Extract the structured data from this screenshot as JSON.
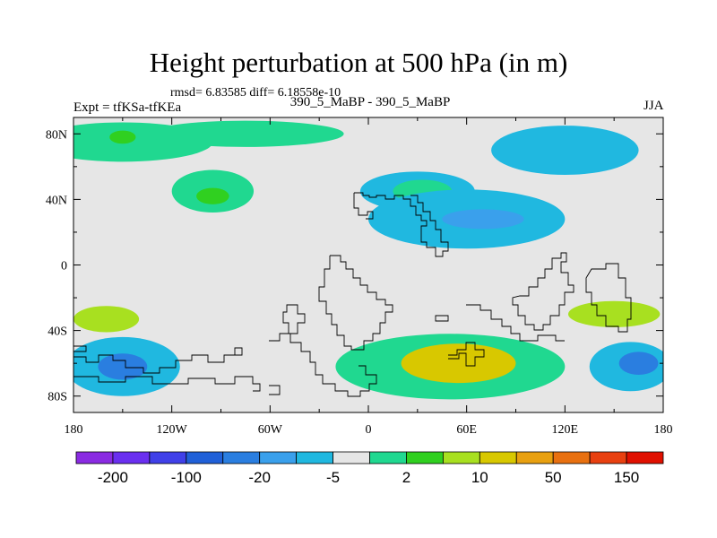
{
  "header": {
    "title": "Height perturbation at 500 hPa (in m)",
    "stats": "rmsd= 6.83585 diff= 6.18558e-10",
    "experiment": "Expt = tfKSa-tfKEa",
    "comparison": "390_5_MaBP - 390_5_MaBP",
    "season": "JJA"
  },
  "chart_data": {
    "type": "heatmap",
    "title": "Height perturbation at 500 hPa (in m)",
    "xlabel": "",
    "ylabel": "",
    "xlim": [
      -180,
      180
    ],
    "ylim": [
      -90,
      90
    ],
    "x_ticks": [
      {
        "value": -180,
        "label": "180"
      },
      {
        "value": -120,
        "label": "120W"
      },
      {
        "value": -60,
        "label": "60W"
      },
      {
        "value": 0,
        "label": "0"
      },
      {
        "value": 60,
        "label": "60E"
      },
      {
        "value": 120,
        "label": "120E"
      },
      {
        "value": 180,
        "label": "180"
      }
    ],
    "y_ticks": [
      {
        "value": 80,
        "label": "80N"
      },
      {
        "value": 40,
        "label": "40N"
      },
      {
        "value": 0,
        "label": "0"
      },
      {
        "value": -40,
        "label": "40S"
      },
      {
        "value": -80,
        "label": "80S"
      }
    ],
    "levels": [
      -200,
      -150,
      -100,
      -50,
      -20,
      -10,
      -5,
      -2,
      2,
      5,
      10,
      20,
      50,
      100,
      150,
      200
    ],
    "colorbar_labels": [
      {
        "level": -200,
        "label": "-200"
      },
      {
        "level": -100,
        "label": "-100"
      },
      {
        "level": -20,
        "label": "-20"
      },
      {
        "level": -5,
        "label": "-5"
      },
      {
        "level": 2,
        "label": "2"
      },
      {
        "level": 10,
        "label": "10"
      },
      {
        "level": 50,
        "label": "50"
      },
      {
        "level": 150,
        "label": "150"
      }
    ],
    "colors": [
      "#8a2be2",
      "#6a2ff0",
      "#4040e8",
      "#2060d8",
      "#2a7ee0",
      "#3aa0ec",
      "#20b8e0",
      "#e6e6e6",
      "#20d890",
      "#30d020",
      "#a8e020",
      "#d8c800",
      "#e8a010",
      "#e87010",
      "#e84010",
      "#e01000"
    ],
    "regions": [
      {
        "name": "north-atlantic",
        "level_index": 8,
        "lon": -150,
        "lat": 75,
        "dlon": 55,
        "dlat": 12
      },
      {
        "name": "north-atlantic-core",
        "level_index": 9,
        "lon": -150,
        "lat": 78,
        "dlon": 8,
        "dlat": 4
      },
      {
        "name": "north-europe",
        "level_index": 8,
        "lon": -75,
        "lat": 80,
        "dlon": 60,
        "dlat": 8
      },
      {
        "name": "siberia-high",
        "level_index": 6,
        "lon": 30,
        "lat": 45,
        "dlon": 35,
        "dlat": 12
      },
      {
        "name": "siberia-core",
        "level_index": 8,
        "lon": 33,
        "lat": 45,
        "dlon": 18,
        "dlat": 7
      },
      {
        "name": "pacific-north",
        "level_index": 8,
        "lon": -95,
        "lat": 45,
        "dlon": 25,
        "dlat": 13
      },
      {
        "name": "pacific-north-core",
        "level_index": 9,
        "lon": -95,
        "lat": 42,
        "dlon": 10,
        "dlat": 5
      },
      {
        "name": "asia-trough",
        "level_index": 6,
        "lon": 60,
        "lat": 28,
        "dlon": 60,
        "dlat": 18
      },
      {
        "name": "asia-trough-core",
        "level_index": 5,
        "lon": 70,
        "lat": 28,
        "dlon": 25,
        "dlat": 6
      },
      {
        "name": "eastasia-north",
        "level_index": 6,
        "lon": 120,
        "lat": 70,
        "dlon": 45,
        "dlat": 15
      },
      {
        "name": "southern-ocean-ring",
        "level_index": 8,
        "lon": 50,
        "lat": -62,
        "dlon": 70,
        "dlat": 20
      },
      {
        "name": "southern-core",
        "level_index": 11,
        "lon": 55,
        "lat": -60,
        "dlon": 35,
        "dlat": 12
      },
      {
        "name": "atlantic-south",
        "level_index": 6,
        "lon": -150,
        "lat": -62,
        "dlon": 35,
        "dlat": 18
      },
      {
        "name": "atlantic-south-core",
        "level_index": 4,
        "lon": -150,
        "lat": -62,
        "dlon": 15,
        "dlat": 8
      },
      {
        "name": "sw-pacific",
        "level_index": 10,
        "lon": -160,
        "lat": -33,
        "dlon": 20,
        "dlat": 8
      },
      {
        "name": "australia-trough",
        "level_index": 6,
        "lon": 160,
        "lat": -62,
        "dlon": 25,
        "dlat": 15
      },
      {
        "name": "australia-core",
        "level_index": 4,
        "lon": 165,
        "lat": -60,
        "dlon": 12,
        "dlat": 7
      },
      {
        "name": "indian-ridge",
        "level_index": 10,
        "lon": 150,
        "lat": -30,
        "dlon": 28,
        "dlat": 8
      }
    ]
  }
}
